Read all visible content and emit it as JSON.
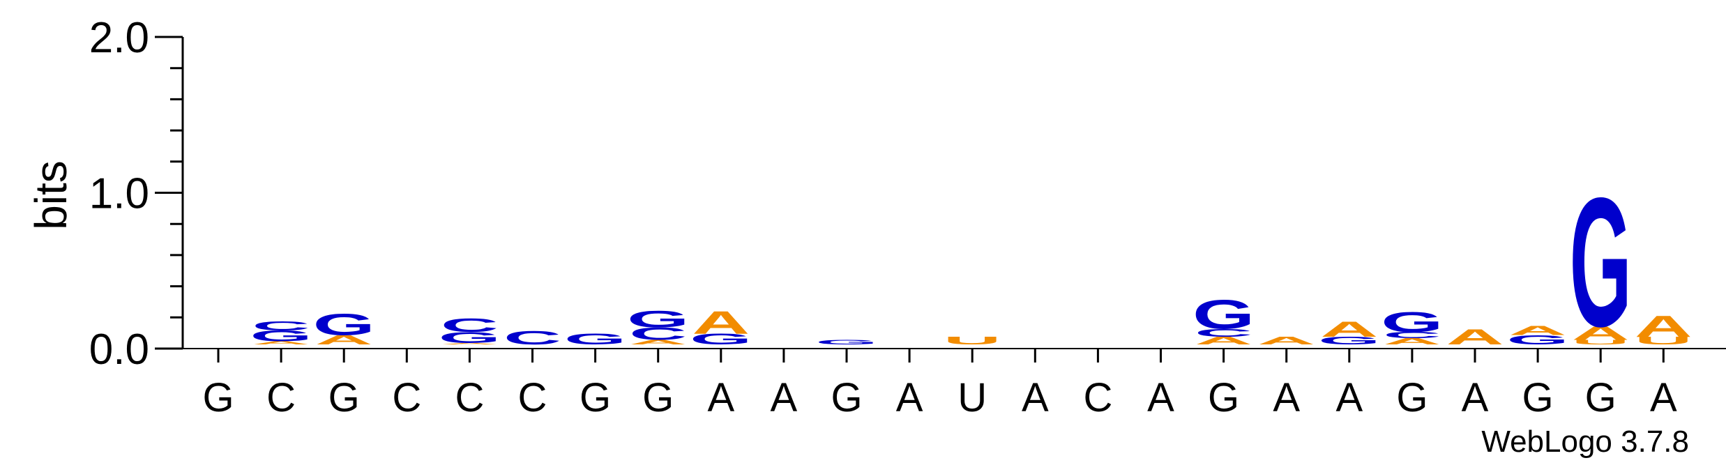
{
  "chart_data": {
    "type": "sequence-logo",
    "ylabel": "bits",
    "ylim": [
      0,
      2.0
    ],
    "yticks": [
      "0.0",
      "1.0",
      "2.0"
    ],
    "x_labels": [
      "G",
      "C",
      "G",
      "C",
      "C",
      "C",
      "G",
      "G",
      "A",
      "A",
      "G",
      "A",
      "U",
      "A",
      "C",
      "A",
      "G",
      "A",
      "A",
      "G",
      "A",
      "G",
      "G",
      "A"
    ],
    "colors": {
      "A": "#f28c00",
      "C": "#0000cc",
      "G": "#0000cc",
      "U": "#f28c00"
    },
    "positions": [
      {
        "letters": []
      },
      {
        "letters": [
          {
            "b": "A",
            "h": 0.02
          },
          {
            "b": "G",
            "h": 0.07
          },
          {
            "b": "C",
            "h": 0.06
          }
        ]
      },
      {
        "letters": [
          {
            "b": "A",
            "h": 0.06
          },
          {
            "b": "G",
            "h": 0.14
          }
        ]
      },
      {
        "letters": []
      },
      {
        "letters": [
          {
            "b": "A",
            "h": 0.01
          },
          {
            "b": "G",
            "h": 0.07
          },
          {
            "b": "C",
            "h": 0.09
          }
        ]
      },
      {
        "letters": [
          {
            "b": "C",
            "h": 0.09
          }
        ]
      },
      {
        "letters": [
          {
            "b": "G",
            "h": 0.07
          }
        ]
      },
      {
        "letters": [
          {
            "b": "A",
            "h": 0.03
          },
          {
            "b": "C",
            "h": 0.08
          },
          {
            "b": "G",
            "h": 0.11
          }
        ]
      },
      {
        "letters": [
          {
            "b": "G",
            "h": 0.07
          },
          {
            "b": "A",
            "h": 0.15
          }
        ]
      },
      {
        "letters": []
      },
      {
        "letters": [
          {
            "b": "G",
            "h": 0.03
          }
        ]
      },
      {
        "letters": []
      },
      {
        "letters": [
          {
            "b": "U",
            "h": 0.05
          }
        ]
      },
      {
        "letters": []
      },
      {
        "letters": []
      },
      {
        "letters": []
      },
      {
        "letters": [
          {
            "b": "A",
            "h": 0.05
          },
          {
            "b": "C",
            "h": 0.05
          },
          {
            "b": "G",
            "h": 0.19
          }
        ]
      },
      {
        "letters": [
          {
            "b": "A",
            "h": 0.05
          }
        ]
      },
      {
        "letters": [
          {
            "b": "G",
            "h": 0.05
          },
          {
            "b": "A",
            "h": 0.1
          }
        ]
      },
      {
        "letters": [
          {
            "b": "A",
            "h": 0.04
          },
          {
            "b": "C",
            "h": 0.04
          },
          {
            "b": "G",
            "h": 0.13
          }
        ]
      },
      {
        "letters": [
          {
            "b": "A",
            "h": 0.1
          }
        ]
      },
      {
        "letters": [
          {
            "b": "G",
            "h": 0.06
          },
          {
            "b": "A",
            "h": 0.06
          }
        ]
      },
      {
        "letters": [
          {
            "b": "U",
            "h": 0.03
          },
          {
            "b": "A",
            "h": 0.09
          },
          {
            "b": "G",
            "h": 0.85
          }
        ]
      },
      {
        "letters": [
          {
            "b": "U",
            "h": 0.05
          },
          {
            "b": "A",
            "h": 0.14
          }
        ]
      }
    ],
    "credit": "WebLogo 3.7.8"
  }
}
